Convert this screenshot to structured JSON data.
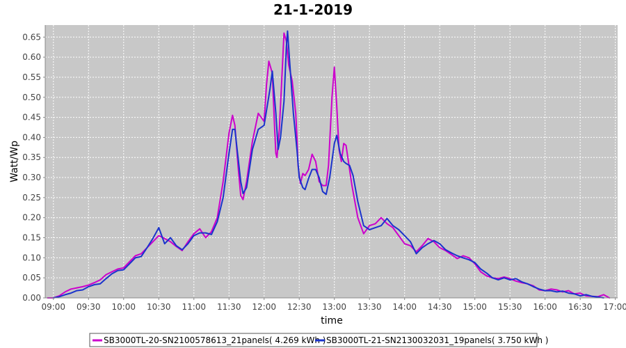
{
  "chart_data": {
    "type": "line",
    "title": "21-1-2019",
    "xlabel": "time",
    "ylabel": "Watt/Wp",
    "xlim": [
      "08:53",
      "17:02"
    ],
    "ylim": [
      0,
      0.68
    ],
    "x_ticks": [
      "09:00",
      "09:30",
      "10:00",
      "10:30",
      "11:00",
      "11:30",
      "12:00",
      "12:30",
      "13:00",
      "13:30",
      "14:00",
      "14:30",
      "15:00",
      "15:30",
      "16:00",
      "16:30",
      "17:00"
    ],
    "y_ticks": [
      "0.00",
      "0.05",
      "0.10",
      "0.15",
      "0.20",
      "0.25",
      "0.30",
      "0.35",
      "0.40",
      "0.45",
      "0.50",
      "0.55",
      "0.60",
      "0.65"
    ],
    "grid": true,
    "legend_position": "bottom",
    "background": "#c8c8c8",
    "series": [
      {
        "name": "SB3000TL-20-SN2100578613_21panels( 4.269 kWh )",
        "color": "#cc00cc",
        "points": [
          [
            "08:55",
            0.0
          ],
          [
            "09:00",
            0.0
          ],
          [
            "09:05",
            0.005
          ],
          [
            "09:10",
            0.015
          ],
          [
            "09:15",
            0.022
          ],
          [
            "09:20",
            0.025
          ],
          [
            "09:25",
            0.028
          ],
          [
            "09:30",
            0.032
          ],
          [
            "09:35",
            0.038
          ],
          [
            "09:40",
            0.045
          ],
          [
            "09:45",
            0.058
          ],
          [
            "09:50",
            0.065
          ],
          [
            "09:55",
            0.072
          ],
          [
            "10:00",
            0.075
          ],
          [
            "10:05",
            0.09
          ],
          [
            "10:10",
            0.105
          ],
          [
            "10:15",
            0.11
          ],
          [
            "10:20",
            0.125
          ],
          [
            "10:25",
            0.14
          ],
          [
            "10:30",
            0.155
          ],
          [
            "10:35",
            0.148
          ],
          [
            "10:40",
            0.14
          ],
          [
            "10:45",
            0.128
          ],
          [
            "10:50",
            0.118
          ],
          [
            "10:55",
            0.14
          ],
          [
            "11:00",
            0.16
          ],
          [
            "11:05",
            0.172
          ],
          [
            "11:10",
            0.15
          ],
          [
            "11:15",
            0.165
          ],
          [
            "11:20",
            0.2
          ],
          [
            "11:25",
            0.29
          ],
          [
            "11:30",
            0.41
          ],
          [
            "11:33",
            0.455
          ],
          [
            "11:35",
            0.43
          ],
          [
            "11:38",
            0.32
          ],
          [
            "11:40",
            0.255
          ],
          [
            "11:42",
            0.245
          ],
          [
            "11:45",
            0.29
          ],
          [
            "11:50",
            0.39
          ],
          [
            "11:55",
            0.46
          ],
          [
            "12:00",
            0.44
          ],
          [
            "12:02",
            0.53
          ],
          [
            "12:04",
            0.59
          ],
          [
            "12:07",
            0.56
          ],
          [
            "12:09",
            0.42
          ],
          [
            "12:10",
            0.36
          ],
          [
            "12:11",
            0.35
          ],
          [
            "12:13",
            0.42
          ],
          [
            "12:15",
            0.54
          ],
          [
            "12:17",
            0.66
          ],
          [
            "12:19",
            0.64
          ],
          [
            "12:21",
            0.58
          ],
          [
            "12:24",
            0.54
          ],
          [
            "12:27",
            0.46
          ],
          [
            "12:28",
            0.4
          ],
          [
            "12:29",
            0.33
          ],
          [
            "12:31",
            0.285
          ],
          [
            "12:33",
            0.31
          ],
          [
            "12:35",
            0.305
          ],
          [
            "12:38",
            0.32
          ],
          [
            "12:41",
            0.358
          ],
          [
            "12:44",
            0.34
          ],
          [
            "12:47",
            0.29
          ],
          [
            "12:50",
            0.28
          ],
          [
            "12:53",
            0.28
          ],
          [
            "12:55",
            0.33
          ],
          [
            "12:58",
            0.5
          ],
          [
            "13:00",
            0.575
          ],
          [
            "13:02",
            0.48
          ],
          [
            "13:04",
            0.37
          ],
          [
            "13:06",
            0.34
          ],
          [
            "13:08",
            0.385
          ],
          [
            "13:10",
            0.38
          ],
          [
            "13:15",
            0.28
          ],
          [
            "13:20",
            0.2
          ],
          [
            "13:25",
            0.16
          ],
          [
            "13:30",
            0.18
          ],
          [
            "13:35",
            0.185
          ],
          [
            "13:40",
            0.2
          ],
          [
            "13:45",
            0.185
          ],
          [
            "13:50",
            0.175
          ],
          [
            "13:55",
            0.155
          ],
          [
            "14:00",
            0.135
          ],
          [
            "14:05",
            0.13
          ],
          [
            "14:10",
            0.115
          ],
          [
            "14:15",
            0.13
          ],
          [
            "14:20",
            0.148
          ],
          [
            "14:25",
            0.14
          ],
          [
            "14:30",
            0.125
          ],
          [
            "14:35",
            0.118
          ],
          [
            "14:40",
            0.108
          ],
          [
            "14:45",
            0.098
          ],
          [
            "14:50",
            0.105
          ],
          [
            "14:55",
            0.1
          ],
          [
            "15:00",
            0.085
          ],
          [
            "15:05",
            0.065
          ],
          [
            "15:10",
            0.055
          ],
          [
            "15:15",
            0.05
          ],
          [
            "15:20",
            0.048
          ],
          [
            "15:25",
            0.052
          ],
          [
            "15:30",
            0.048
          ],
          [
            "15:35",
            0.042
          ],
          [
            "15:40",
            0.038
          ],
          [
            "15:45",
            0.035
          ],
          [
            "15:50",
            0.03
          ],
          [
            "15:55",
            0.02
          ],
          [
            "16:00",
            0.018
          ],
          [
            "16:05",
            0.022
          ],
          [
            "16:10",
            0.02
          ],
          [
            "16:15",
            0.015
          ],
          [
            "16:20",
            0.018
          ],
          [
            "16:25",
            0.01
          ],
          [
            "16:30",
            0.012
          ],
          [
            "16:35",
            0.005
          ],
          [
            "16:40",
            0.004
          ],
          [
            "16:45",
            0.003
          ],
          [
            "16:50",
            0.008
          ],
          [
            "16:55",
            0.0
          ]
        ]
      },
      {
        "name": "SB3000TL-21-SN2130032031_19panels( 3.750 kWh )",
        "color": "#1a33cc",
        "points": [
          [
            "09:00",
            0.0
          ],
          [
            "09:05",
            0.003
          ],
          [
            "09:10",
            0.008
          ],
          [
            "09:15",
            0.012
          ],
          [
            "09:20",
            0.018
          ],
          [
            "09:25",
            0.02
          ],
          [
            "09:30",
            0.028
          ],
          [
            "09:35",
            0.033
          ],
          [
            "09:40",
            0.035
          ],
          [
            "09:45",
            0.048
          ],
          [
            "09:50",
            0.06
          ],
          [
            "09:55",
            0.068
          ],
          [
            "10:00",
            0.07
          ],
          [
            "10:05",
            0.085
          ],
          [
            "10:10",
            0.1
          ],
          [
            "10:15",
            0.103
          ],
          [
            "10:20",
            0.125
          ],
          [
            "10:25",
            0.148
          ],
          [
            "10:30",
            0.175
          ],
          [
            "10:35",
            0.135
          ],
          [
            "10:40",
            0.15
          ],
          [
            "10:45",
            0.13
          ],
          [
            "10:50",
            0.12
          ],
          [
            "10:55",
            0.135
          ],
          [
            "11:00",
            0.155
          ],
          [
            "11:05",
            0.162
          ],
          [
            "11:10",
            0.162
          ],
          [
            "11:15",
            0.158
          ],
          [
            "11:20",
            0.19
          ],
          [
            "11:25",
            0.25
          ],
          [
            "11:30",
            0.36
          ],
          [
            "11:33",
            0.42
          ],
          [
            "11:35",
            0.42
          ],
          [
            "11:40",
            0.29
          ],
          [
            "11:42",
            0.26
          ],
          [
            "11:45",
            0.275
          ],
          [
            "11:50",
            0.37
          ],
          [
            "11:55",
            0.42
          ],
          [
            "12:00",
            0.43
          ],
          [
            "12:05",
            0.52
          ],
          [
            "12:07",
            0.565
          ],
          [
            "12:10",
            0.46
          ],
          [
            "12:12",
            0.37
          ],
          [
            "12:14",
            0.4
          ],
          [
            "12:17",
            0.49
          ],
          [
            "12:19",
            0.625
          ],
          [
            "12:20",
            0.665
          ],
          [
            "12:22",
            0.58
          ],
          [
            "12:25",
            0.46
          ],
          [
            "12:28",
            0.37
          ],
          [
            "12:30",
            0.3
          ],
          [
            "12:33",
            0.275
          ],
          [
            "12:35",
            0.27
          ],
          [
            "12:38",
            0.298
          ],
          [
            "12:41",
            0.32
          ],
          [
            "12:44",
            0.32
          ],
          [
            "12:47",
            0.3
          ],
          [
            "12:50",
            0.265
          ],
          [
            "12:53",
            0.258
          ],
          [
            "12:56",
            0.3
          ],
          [
            "13:00",
            0.385
          ],
          [
            "13:02",
            0.405
          ],
          [
            "13:05",
            0.36
          ],
          [
            "13:08",
            0.34
          ],
          [
            "13:10",
            0.335
          ],
          [
            "13:13",
            0.33
          ],
          [
            "13:16",
            0.305
          ],
          [
            "13:20",
            0.24
          ],
          [
            "13:25",
            0.18
          ],
          [
            "13:30",
            0.17
          ],
          [
            "13:35",
            0.175
          ],
          [
            "13:40",
            0.18
          ],
          [
            "13:45",
            0.198
          ],
          [
            "13:50",
            0.18
          ],
          [
            "13:55",
            0.17
          ],
          [
            "14:00",
            0.155
          ],
          [
            "14:05",
            0.14
          ],
          [
            "14:10",
            0.11
          ],
          [
            "14:15",
            0.125
          ],
          [
            "14:20",
            0.135
          ],
          [
            "14:25",
            0.143
          ],
          [
            "14:30",
            0.135
          ],
          [
            "14:35",
            0.12
          ],
          [
            "14:40",
            0.112
          ],
          [
            "14:45",
            0.105
          ],
          [
            "14:50",
            0.1
          ],
          [
            "14:55",
            0.095
          ],
          [
            "15:00",
            0.088
          ],
          [
            "15:05",
            0.072
          ],
          [
            "15:10",
            0.062
          ],
          [
            "15:15",
            0.05
          ],
          [
            "15:20",
            0.045
          ],
          [
            "15:25",
            0.05
          ],
          [
            "15:30",
            0.045
          ],
          [
            "15:35",
            0.048
          ],
          [
            "15:40",
            0.04
          ],
          [
            "15:45",
            0.035
          ],
          [
            "15:50",
            0.028
          ],
          [
            "15:55",
            0.022
          ],
          [
            "16:00",
            0.018
          ],
          [
            "16:05",
            0.018
          ],
          [
            "16:10",
            0.015
          ],
          [
            "16:15",
            0.017
          ],
          [
            "16:20",
            0.012
          ],
          [
            "16:25",
            0.01
          ],
          [
            "16:30",
            0.005
          ],
          [
            "16:35",
            0.008
          ],
          [
            "16:40",
            0.004
          ],
          [
            "16:45",
            0.002
          ],
          [
            "16:50",
            0.0
          ]
        ]
      }
    ]
  }
}
